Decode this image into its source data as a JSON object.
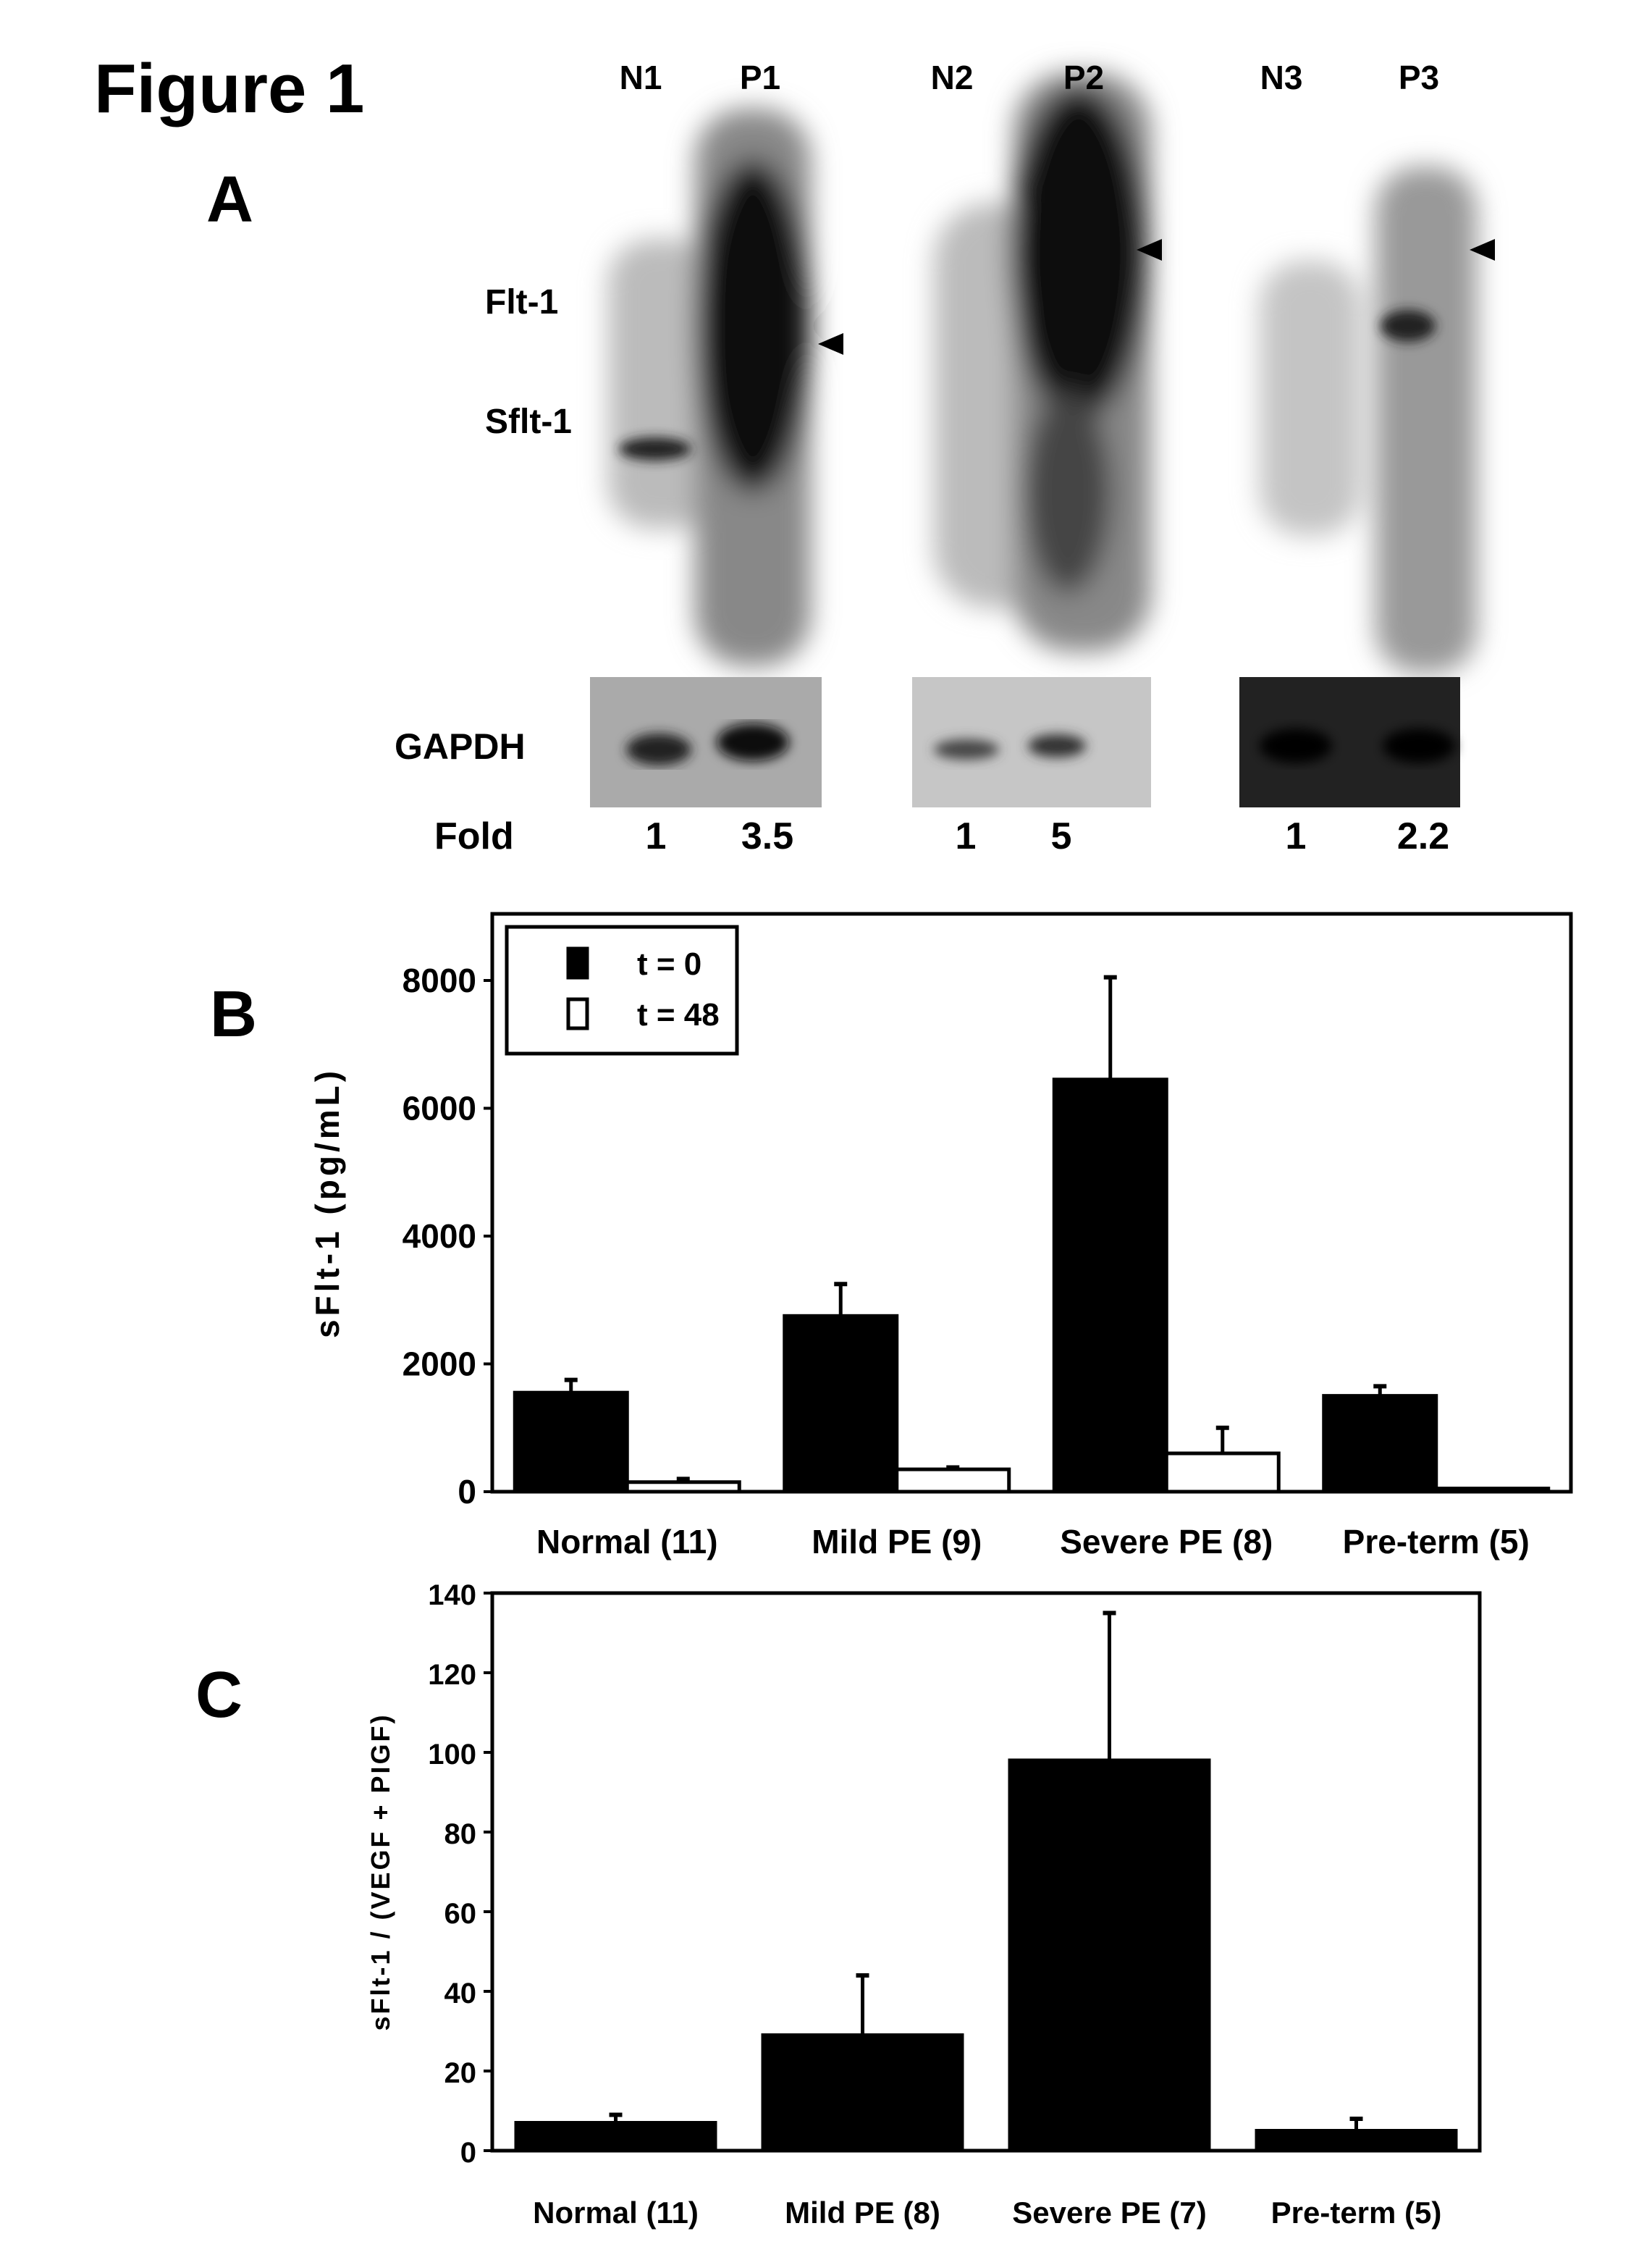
{
  "figure_title": "Figure 1",
  "panel_a": {
    "label": "A",
    "lanes": [
      "N1",
      "P1",
      "N2",
      "P2",
      "N3",
      "P3"
    ],
    "band_labels": {
      "flt1": "Flt-1",
      "sflt1": "Sflt-1",
      "gapdh": "GAPDH"
    },
    "fold_label": "Fold",
    "fold_values": [
      "1",
      "3.5",
      "1",
      "5",
      "1",
      "2.2"
    ],
    "arrowhead_icon": "triangle-left"
  },
  "chart_data": [
    {
      "panel": "B",
      "type": "bar",
      "categories": [
        "Normal (11)",
        "Mild PE (9)",
        "Severe PE (8)",
        "Pre-term (5)"
      ],
      "series": [
        {
          "name": "t = 0",
          "values": [
            1550,
            2750,
            6450,
            1500
          ],
          "error": [
            200,
            500,
            1600,
            150
          ],
          "color": "#000000"
        },
        {
          "name": "t = 48",
          "values": [
            150,
            350,
            600,
            50
          ],
          "error": [
            50,
            30,
            400,
            0
          ],
          "color": "#ffffff"
        }
      ],
      "ylabel": "sFlt-1 (pg/mL)",
      "yticks": [
        0,
        2000,
        4000,
        6000,
        8000
      ],
      "ylim": [
        0,
        8900
      ],
      "legend": "top-left",
      "grid": false
    },
    {
      "panel": "C",
      "type": "bar",
      "categories": [
        "Normal (11)",
        "Mild PE (8)",
        "Severe PE (7)",
        "Pre-term (5)"
      ],
      "series": [
        {
          "values": [
            7,
            29,
            98,
            5
          ],
          "error": [
            2,
            15,
            37,
            3
          ],
          "color": "#000000"
        }
      ],
      "ylabel": "sFlt-1 / (VEGF + PIGF)",
      "yticks": [
        0,
        20,
        40,
        60,
        80,
        100,
        120,
        140
      ],
      "ylim": [
        0,
        140
      ],
      "grid": false
    }
  ]
}
